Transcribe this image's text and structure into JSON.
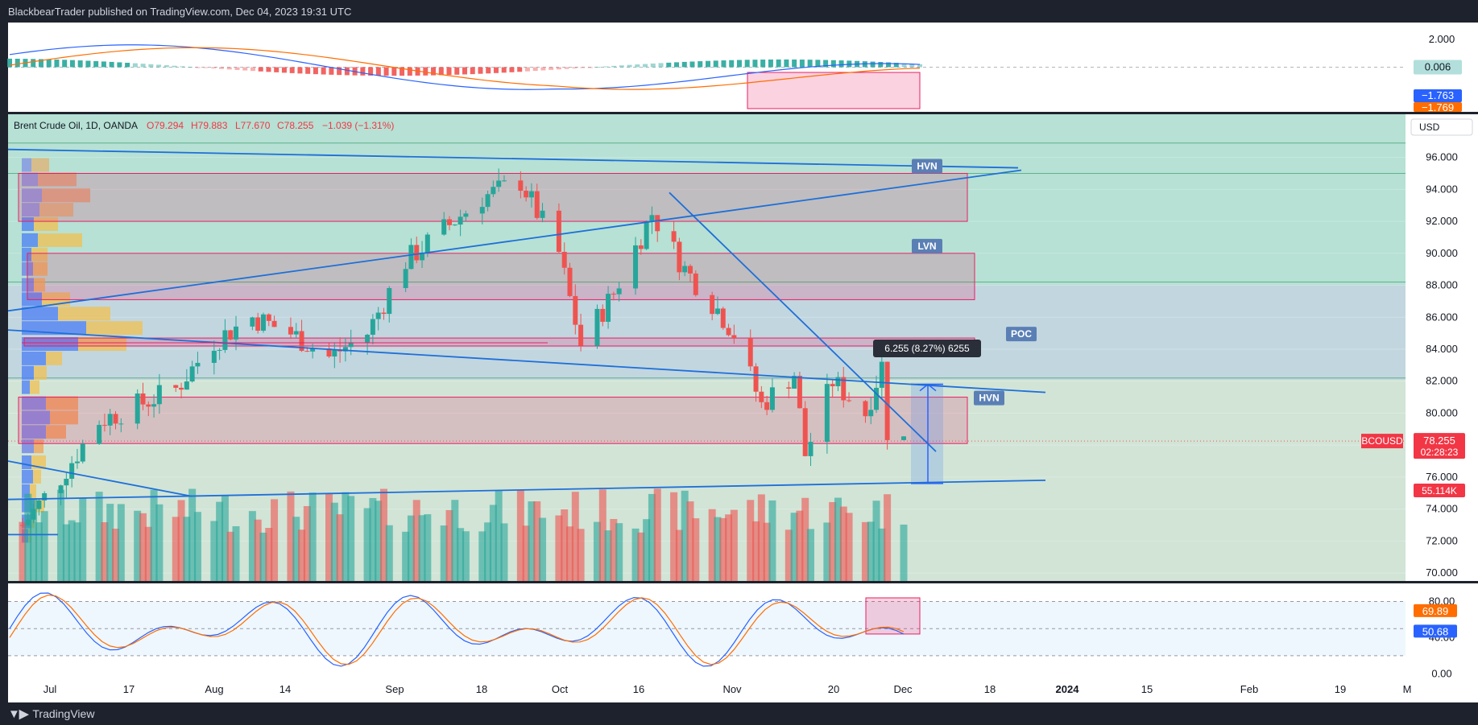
{
  "header": {
    "published": "BlackbearTrader published on TradingView.com, Dec 04, 2023 19:31 UTC"
  },
  "footer": {
    "brand": "TradingView"
  },
  "legend": {
    "symbol": "Brent Crude Oil, 1D, OANDA",
    "open": "O79.294",
    "high": "H79.883",
    "low": "L77.670",
    "close": "C78.255",
    "change": "−1.039 (−1.31%)"
  },
  "colors": {
    "up": "#26a69a",
    "down": "#ef5350",
    "macd": "#2962ff",
    "signal": "#ff6d00",
    "zone": "#e91e63",
    "trend": "#1e6fd9"
  },
  "chart_data": [
    {
      "type": "bar",
      "name": "MACD",
      "y_ticks": [
        "2.000",
        "0.000"
      ],
      "labels": {
        "hist": "0.006",
        "macd": "−1.763",
        "signal": "−1.769"
      },
      "ylim": [
        -3.2,
        3.2
      ]
    },
    {
      "type": "candlestick",
      "title": "Brent Crude Oil, 1D, OANDA",
      "currency": "USD",
      "y_ticks": [
        "96.000",
        "94.000",
        "92.000",
        "90.000",
        "88.000",
        "86.000",
        "84.000",
        "82.000",
        "80.000",
        "78.000",
        "76.000",
        "74.000",
        "72.000",
        "70.000"
      ],
      "ylim": [
        69.5,
        98.7
      ],
      "x_ticks": [
        "Jul",
        "17",
        "Aug",
        "14",
        "Sep",
        "18",
        "Oct",
        "16",
        "Nov",
        "20",
        "Dec",
        "18",
        "2024",
        "15",
        "Feb",
        "19",
        "M"
      ],
      "price_label": {
        "symbol": "BCOUSD",
        "price": "78.255",
        "countdown": "02:28:23"
      },
      "volume_label": "55.114K",
      "measure_label": "6.255 (8.27%) 6255",
      "zone_labels": [
        "HVN",
        "LVN",
        "POC",
        "HVN"
      ],
      "candles_ohlc_sample": [
        {
          "date": "2023-06-26",
          "o": 72.9,
          "h": 74.7,
          "l": 72.2,
          "c": 74.1
        },
        {
          "date": "2023-07-13",
          "o": 80.4,
          "h": 81.8,
          "l": 79.9,
          "c": 81.4
        },
        {
          "date": "2023-08-10",
          "o": 87.0,
          "h": 88.1,
          "l": 86.3,
          "c": 86.6
        },
        {
          "date": "2023-09-27",
          "o": 93.5,
          "h": 96.1,
          "l": 93.1,
          "c": 95.1
        },
        {
          "date": "2023-10-06",
          "o": 84.1,
          "h": 84.8,
          "l": 83.7,
          "c": 84.3
        },
        {
          "date": "2023-10-19",
          "o": 92.5,
          "h": 93.7,
          "l": 91.3,
          "c": 92.3
        },
        {
          "date": "2023-11-16",
          "o": 81.2,
          "h": 81.6,
          "l": 76.6,
          "c": 77.4
        },
        {
          "date": "2023-12-01",
          "o": 80.5,
          "h": 81.3,
          "l": 78.5,
          "c": 78.9
        },
        {
          "date": "2023-12-04",
          "o": 79.294,
          "h": 79.883,
          "l": 77.67,
          "c": 78.255
        }
      ]
    },
    {
      "type": "line",
      "name": "Stochastic",
      "y_ticks": [
        "80.00",
        "40.00",
        "0.00"
      ],
      "labels": {
        "k": "69.89",
        "d": "50.68"
      },
      "ylim": [
        -5,
        100
      ]
    }
  ]
}
